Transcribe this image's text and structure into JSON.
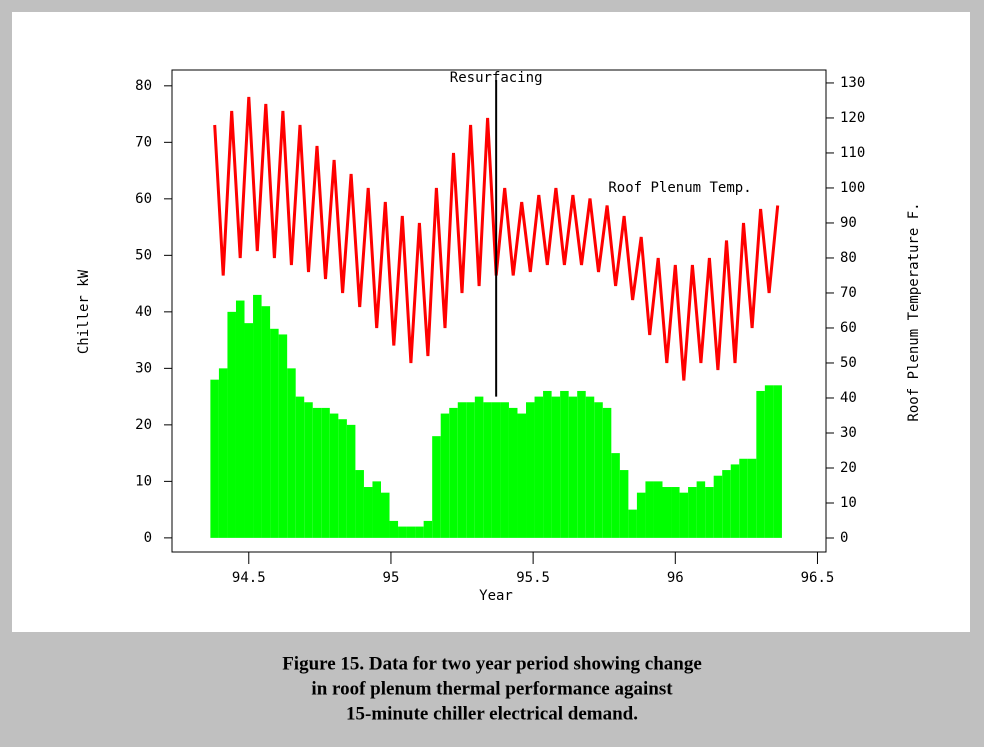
{
  "chart_data": {
    "type": "bar",
    "x": [
      94.38,
      94.41,
      94.44,
      94.47,
      94.5,
      94.53,
      94.56,
      94.59,
      94.62,
      94.65,
      94.68,
      94.71,
      94.74,
      94.77,
      94.8,
      94.83,
      94.86,
      94.89,
      94.92,
      94.95,
      94.98,
      95.01,
      95.04,
      95.07,
      95.1,
      95.13,
      95.16,
      95.19,
      95.22,
      95.25,
      95.28,
      95.31,
      95.34,
      95.37,
      95.4,
      95.43,
      95.46,
      95.49,
      95.52,
      95.55,
      95.58,
      95.61,
      95.64,
      95.67,
      95.7,
      95.73,
      95.76,
      95.79,
      95.82,
      95.85,
      95.88,
      95.91,
      95.94,
      95.97,
      96.0,
      96.03,
      96.06,
      96.09,
      96.12,
      96.15,
      96.18,
      96.21,
      96.24,
      96.27,
      96.3,
      96.33,
      96.36
    ],
    "series": [
      {
        "color": "#00ff00",
        "values": [
          28,
          30,
          40,
          42,
          38,
          43,
          41,
          37,
          36,
          30,
          25,
          24,
          23,
          23,
          22,
          21,
          20,
          12,
          9,
          10,
          8,
          3,
          2,
          2,
          2,
          3,
          18,
          22,
          23,
          24,
          24,
          25,
          24,
          24,
          24,
          23,
          22,
          24,
          25,
          26,
          25,
          26,
          25,
          26,
          25,
          24,
          23,
          15,
          12,
          5,
          8,
          10,
          10,
          9,
          9,
          8,
          9,
          10,
          9,
          11,
          12,
          13,
          14,
          14,
          26,
          27,
          27
        ]
      },
      {
        "name": "Roof Plenum Temp.",
        "type": "line",
        "axis": "y2",
        "color": "#ff0000",
        "values": [
          118,
          75,
          122,
          80,
          126,
          82,
          124,
          80,
          122,
          78,
          118,
          76,
          112,
          74,
          108,
          70,
          104,
          66,
          100,
          60,
          96,
          55,
          92,
          50,
          90,
          52,
          100,
          60,
          110,
          70,
          118,
          72,
          120,
          75,
          100,
          75,
          96,
          76,
          98,
          78,
          100,
          78,
          98,
          78,
          97,
          76,
          95,
          72,
          92,
          68,
          86,
          58,
          80,
          50,
          78,
          45,
          78,
          50,
          80,
          48,
          85,
          50,
          90,
          60,
          94,
          70,
          95
        ]
      }
    ],
    "xlabel": "Year",
    "ylabel": "Chiller kW",
    "y2label": "Roof Plenum Temperature F.",
    "xlim": [
      94.23,
      96.53
    ],
    "xticks": [
      94.5,
      95,
      95.5,
      96,
      96.5
    ],
    "ylim": [
      -2.5,
      82.8
    ],
    "yticks": [
      0,
      10,
      20,
      30,
      40,
      50,
      60,
      70,
      80
    ],
    "y2lim": [
      -4,
      133.7
    ],
    "y2ticks": [
      0,
      10,
      20,
      30,
      40,
      50,
      60,
      70,
      80,
      90,
      100,
      110,
      120,
      130
    ],
    "annotation": {
      "text": "Resurfacing",
      "x": 95.37,
      "y": 25
    }
  },
  "caption": [
    "Figure 15.  Data for two year period showing change",
    "in roof plenum thermal performance against",
    "15-minute chiller electrical demand."
  ]
}
